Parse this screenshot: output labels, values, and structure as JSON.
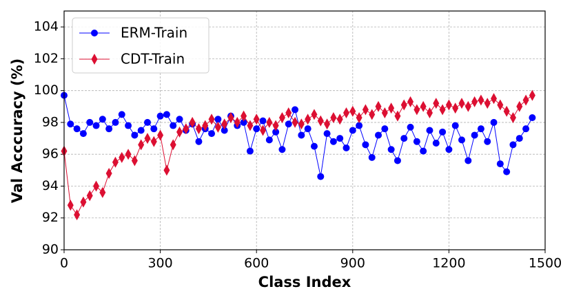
{
  "chart_data": {
    "type": "line",
    "x_label": "Class Index",
    "y_label": "Val Acccuracy (%)",
    "x": [
      0,
      20,
      40,
      60,
      80,
      100,
      120,
      140,
      160,
      180,
      200,
      220,
      240,
      260,
      280,
      300,
      320,
      340,
      360,
      380,
      400,
      420,
      440,
      460,
      480,
      500,
      520,
      540,
      560,
      580,
      600,
      620,
      640,
      660,
      680,
      700,
      720,
      740,
      760,
      780,
      800,
      820,
      840,
      860,
      880,
      900,
      920,
      940,
      960,
      980,
      1000,
      1020,
      1040,
      1060,
      1080,
      1100,
      1120,
      1140,
      1160,
      1180,
      1200,
      1220,
      1240,
      1260,
      1280,
      1300,
      1320,
      1340,
      1360,
      1380,
      1400,
      1420,
      1440,
      1460
    ],
    "series": [
      {
        "name": "ERM-Train",
        "color": "#0000ff",
        "marker": "circle",
        "values": [
          99.7,
          97.9,
          97.6,
          97.3,
          98.0,
          97.8,
          98.2,
          97.6,
          98.0,
          98.5,
          97.8,
          97.2,
          97.5,
          98.0,
          97.6,
          98.4,
          98.5,
          97.8,
          98.2,
          97.5,
          97.9,
          96.8,
          97.6,
          97.3,
          98.2,
          97.5,
          98.4,
          97.8,
          98.0,
          96.2,
          97.6,
          98.1,
          96.9,
          97.4,
          96.3,
          97.9,
          98.8,
          97.2,
          97.6,
          96.5,
          94.6,
          97.3,
          96.8,
          97.0,
          96.4,
          97.5,
          97.8,
          96.6,
          95.8,
          97.2,
          97.6,
          96.3,
          95.6,
          97.0,
          97.7,
          96.8,
          96.2,
          97.5,
          96.7,
          97.4,
          96.3,
          97.8,
          96.9,
          95.6,
          97.2,
          97.6,
          96.8,
          98.0,
          95.4,
          94.9,
          96.6,
          97.0,
          97.6,
          98.3
        ]
      },
      {
        "name": "CDT-Train",
        "color": "#dc0f32",
        "marker": "diamond",
        "values": [
          96.2,
          92.8,
          92.2,
          93.0,
          93.4,
          94.0,
          93.6,
          94.8,
          95.5,
          95.8,
          96.0,
          95.6,
          96.6,
          97.0,
          96.8,
          97.2,
          95.0,
          96.6,
          97.4,
          97.6,
          98.0,
          97.6,
          97.8,
          98.2,
          97.7,
          97.9,
          98.3,
          98.0,
          98.4,
          97.8,
          98.2,
          97.5,
          98.0,
          97.8,
          98.3,
          98.6,
          98.0,
          97.9,
          98.2,
          98.5,
          98.1,
          97.9,
          98.3,
          98.2,
          98.6,
          98.7,
          98.3,
          98.8,
          98.5,
          99.0,
          98.6,
          98.9,
          98.4,
          99.1,
          99.3,
          98.8,
          99.0,
          98.6,
          99.2,
          98.8,
          99.1,
          98.9,
          99.2,
          99.0,
          99.3,
          99.4,
          99.2,
          99.5,
          99.1,
          98.7,
          98.3,
          99.0,
          99.4,
          99.7
        ]
      }
    ],
    "xlim": [
      0,
      1500
    ],
    "xticks": [
      0,
      300,
      600,
      900,
      1200,
      1500
    ],
    "ylim": [
      90,
      105
    ],
    "yticks": [
      90,
      92,
      94,
      96,
      98,
      100,
      102,
      104
    ],
    "grid": true,
    "legend": "upper left"
  }
}
